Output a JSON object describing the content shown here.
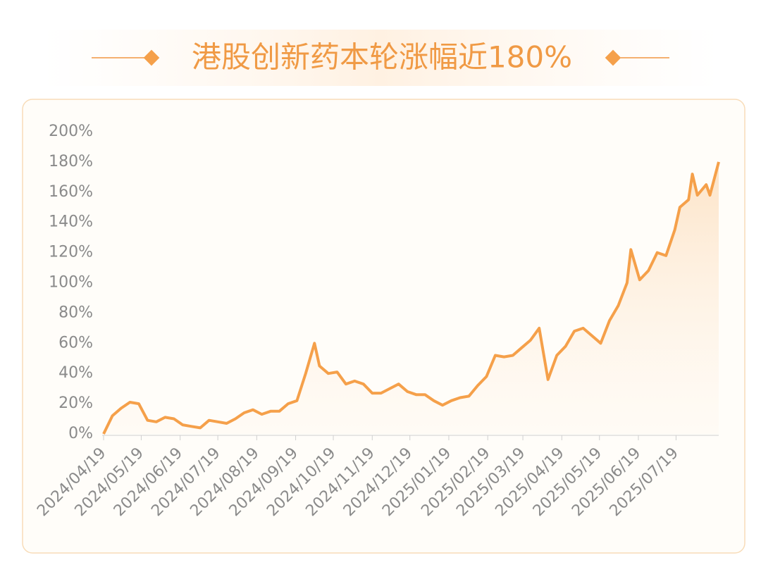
{
  "chart_data": {
    "type": "line",
    "title": "港股创新药本轮涨幅近180%",
    "x": [
      "2024/04/19",
      "2024/04/26",
      "2024/05/03",
      "2024/05/10",
      "2024/05/17",
      "2024/05/24",
      "2024/05/31",
      "2024/06/07",
      "2024/06/14",
      "2024/06/21",
      "2024/06/28",
      "2024/07/05",
      "2024/07/12",
      "2024/07/19",
      "2024/07/26",
      "2024/08/02",
      "2024/08/09",
      "2024/08/16",
      "2024/08/23",
      "2024/08/30",
      "2024/09/06",
      "2024/09/13",
      "2024/09/20",
      "2024/09/27",
      "2024/10/04",
      "2024/10/08",
      "2024/10/15",
      "2024/10/22",
      "2024/10/29",
      "2024/11/05",
      "2024/11/12",
      "2024/11/19",
      "2024/11/26",
      "2024/12/03",
      "2024/12/10",
      "2024/12/17",
      "2024/12/24",
      "2024/12/31",
      "2025/01/07",
      "2025/01/14",
      "2025/01/21",
      "2025/01/28",
      "2025/02/04",
      "2025/02/11",
      "2025/02/18",
      "2025/02/25",
      "2025/03/04",
      "2025/03/11",
      "2025/03/18",
      "2025/03/25",
      "2025/04/01",
      "2025/04/08",
      "2025/04/15",
      "2025/04/22",
      "2025/04/29",
      "2025/05/06",
      "2025/05/13",
      "2025/05/20",
      "2025/05/27",
      "2025/06/03",
      "2025/06/10",
      "2025/06/13",
      "2025/06/20",
      "2025/06/27",
      "2025/07/04",
      "2025/07/11",
      "2025/07/18",
      "2025/07/22",
      "2025/07/29",
      "2025/08/01",
      "2025/08/05",
      "2025/08/12",
      "2025/08/15",
      "2025/08/22"
    ],
    "series": [
      {
        "name": "港股创新药",
        "color": "#f5a04a",
        "values": [
          0,
          12,
          17,
          21,
          20,
          9,
          8,
          11,
          10,
          6,
          5,
          4,
          9,
          8,
          7,
          10,
          14,
          16,
          13,
          15,
          15,
          20,
          22,
          40,
          60,
          45,
          40,
          41,
          33,
          35,
          33,
          27,
          27,
          30,
          33,
          28,
          26,
          26,
          22,
          19,
          22,
          24,
          25,
          32,
          38,
          52,
          51,
          52,
          57,
          62,
          70,
          36,
          52,
          58,
          68,
          70,
          65,
          60,
          75,
          85,
          100,
          122,
          102,
          108,
          120,
          118,
          135,
          150,
          155,
          172,
          158,
          165,
          158,
          180
        ]
      }
    ],
    "xlim": [
      "2024/04/19",
      "2025/08/22"
    ],
    "xticks": [
      "2024/04/19",
      "2024/05/19",
      "2024/06/19",
      "2024/07/19",
      "2024/08/19",
      "2024/09/19",
      "2024/10/19",
      "2024/11/19",
      "2024/12/19",
      "2025/01/19",
      "2025/02/19",
      "2025/03/19",
      "2025/04/19",
      "2025/05/19",
      "2025/06/19",
      "2025/07/19"
    ],
    "ylim": [
      0,
      200
    ],
    "yticks": [
      {
        "value": 0,
        "label": "0%"
      },
      {
        "value": 20,
        "label": "20%"
      },
      {
        "value": 40,
        "label": "40%"
      },
      {
        "value": 60,
        "label": "60%"
      },
      {
        "value": 80,
        "label": "80%"
      },
      {
        "value": 100,
        "label": "100%"
      },
      {
        "value": 120,
        "label": "120%"
      },
      {
        "value": 140,
        "label": "140%"
      },
      {
        "value": 160,
        "label": "160%"
      },
      {
        "value": 180,
        "label": "180%"
      },
      {
        "value": 200,
        "label": "200%"
      }
    ]
  }
}
